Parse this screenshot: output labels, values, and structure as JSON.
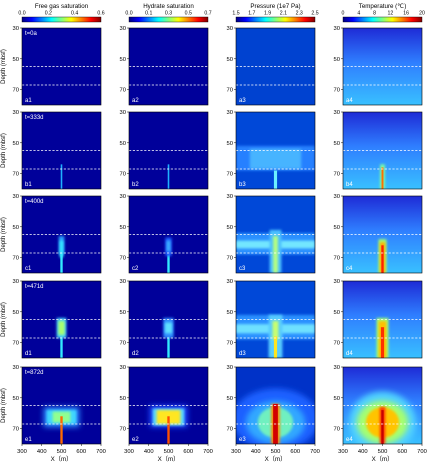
{
  "chart_data": {
    "type": "heatmap",
    "columns": [
      {
        "title": "Free gas saturation",
        "variable": "free_gas",
        "colorbar_ticks": [
          "0.0",
          "0.2",
          "0.4",
          "0.6"
        ],
        "range": [
          0,
          0.6
        ]
      },
      {
        "title": "Hydrate saturation",
        "variable": "hydrate",
        "colorbar_ticks": [
          "0.0",
          "0.1",
          "0.3",
          "0.5",
          "0.7"
        ],
        "range": [
          0,
          0.7
        ]
      },
      {
        "title": "Pressure (1e7 Pa)",
        "variable": "pressure",
        "colorbar_ticks": [
          "1.5",
          "1.7",
          "1.9",
          "2.1",
          "2.3",
          "2.5"
        ],
        "range": [
          1.5,
          2.5
        ]
      },
      {
        "title": "Temperature (℃)",
        "variable": "temperature",
        "colorbar_ticks": [
          "0",
          "4",
          "8",
          "12",
          "16",
          "20"
        ],
        "range": [
          0,
          20
        ]
      }
    ],
    "rows": [
      {
        "time": "t=0a",
        "labels": [
          "a1",
          "a2",
          "a3",
          "a4"
        ]
      },
      {
        "time": "t=333d",
        "labels": [
          "b1",
          "b2",
          "b3",
          "b4"
        ]
      },
      {
        "time": "t=400d",
        "labels": [
          "c1",
          "c2",
          "c3",
          "c4"
        ]
      },
      {
        "time": "t=471d",
        "labels": [
          "d1",
          "d2",
          "d3",
          "d4"
        ]
      },
      {
        "time": "t=872d",
        "labels": [
          "e1",
          "e2",
          "e3",
          "e4"
        ]
      }
    ],
    "xlabel": "X（m）",
    "ylabel": "Depth (mbsf)",
    "xlim": [
      300,
      700
    ],
    "ylim": [
      30,
      80
    ],
    "xticks": [
      "300",
      "400",
      "500",
      "600",
      "700"
    ],
    "yticks": [
      "30",
      "50",
      "70"
    ],
    "reference_depths_mbsf": [
      55,
      67
    ],
    "colorscale": [
      "#00007f",
      "#0000ff",
      "#0080ff",
      "#00ffff",
      "#80ff80",
      "#ffff00",
      "#ff8000",
      "#ff0000",
      "#7f0000"
    ]
  }
}
